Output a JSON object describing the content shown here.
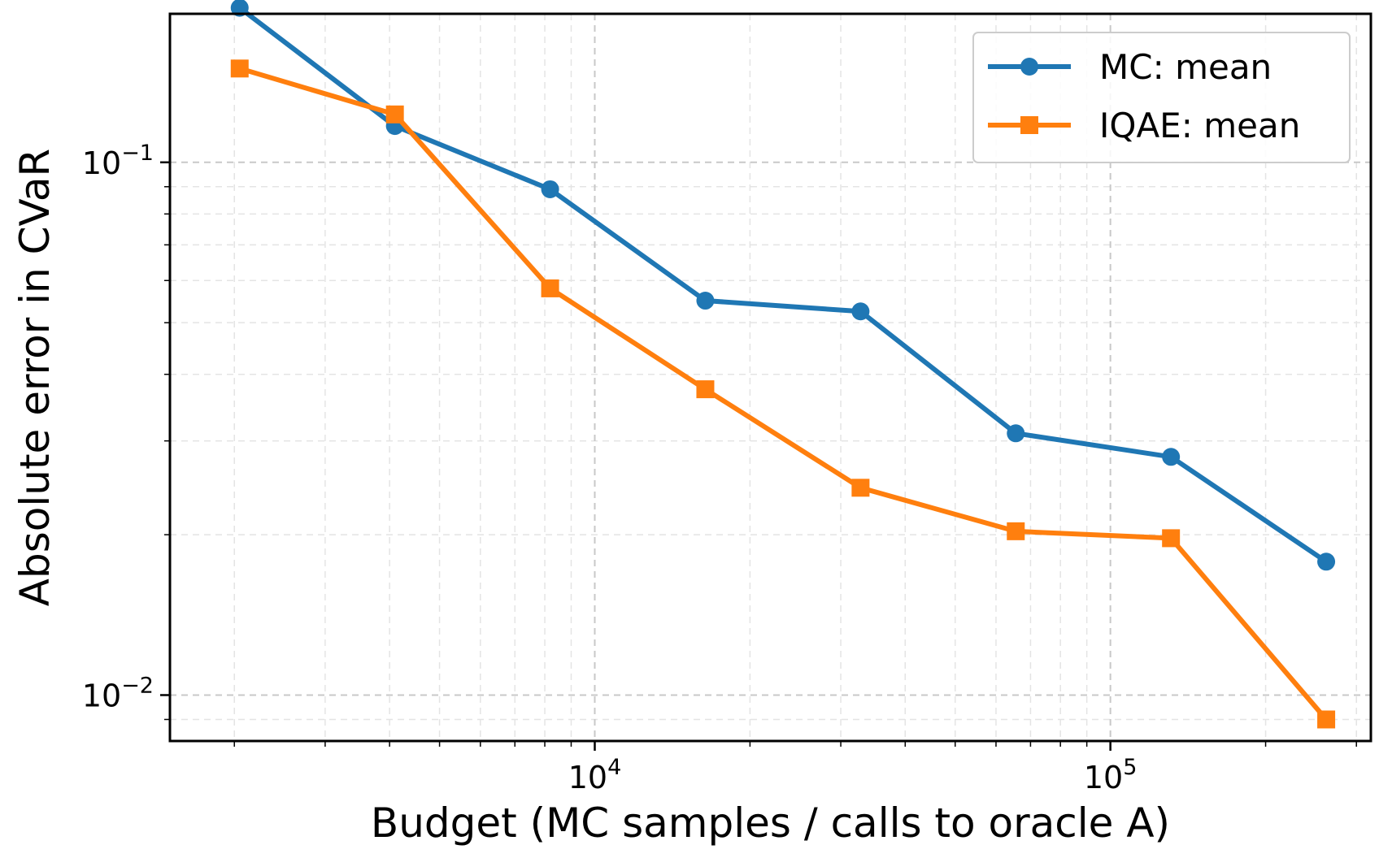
{
  "chart_data": {
    "type": "line",
    "xscale": "log",
    "yscale": "log",
    "xlabel": "Budget (MC samples / calls to oracle A)",
    "ylabel": "Absolute error in CVaR",
    "xlim": [
      1500,
      320000
    ],
    "ylim": [
      0.0082,
      0.19
    ],
    "grid": true,
    "legend_location": "top-right",
    "x_ticks": [
      {
        "value": 10000,
        "base": "10",
        "exp": "4"
      },
      {
        "value": 100000,
        "base": "10",
        "exp": "5"
      }
    ],
    "y_ticks": [
      {
        "value": 0.1,
        "base": "10",
        "exp": "−1"
      },
      {
        "value": 0.01,
        "base": "10",
        "exp": "−2"
      }
    ],
    "x": [
      2048,
      4096,
      8192,
      16384,
      32768,
      65536,
      131072,
      262144
    ],
    "series": [
      {
        "name": "MC: mean",
        "color": "#1f77b4",
        "marker": "circle",
        "values": [
          0.195,
          0.117,
          0.089,
          0.055,
          0.0525,
          0.031,
          0.028,
          0.0178
        ]
      },
      {
        "name": "IQAE: mean",
        "color": "#ff7f0e",
        "marker": "square",
        "values": [
          0.15,
          0.123,
          0.058,
          0.0375,
          0.0245,
          0.0203,
          0.0197,
          0.009
        ]
      }
    ]
  }
}
